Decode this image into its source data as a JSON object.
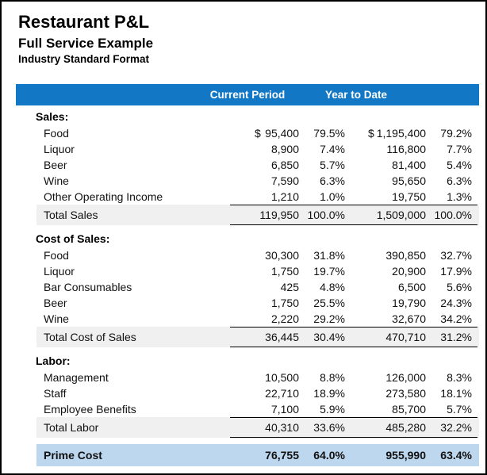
{
  "header": {
    "title": "Restaurant P&L",
    "subtitle": "Full Service Example",
    "format_label": "Industry Standard Format"
  },
  "table": {
    "column_headers": {
      "current_period": "Current Period",
      "year_to_date": "Year to Date"
    },
    "sections": [
      {
        "name": "Sales:",
        "rows": [
          {
            "label": "Food",
            "cp_cur": "$",
            "cp_amount": "95,400",
            "cp_pct": "79.5%",
            "ytd_cur": "$",
            "ytd_amount": "1,195,400",
            "ytd_pct": "79.2%"
          },
          {
            "label": "Liquor",
            "cp_amount": "8,900",
            "cp_pct": "7.4%",
            "ytd_amount": "116,800",
            "ytd_pct": "7.7%"
          },
          {
            "label": "Beer",
            "cp_amount": "6,850",
            "cp_pct": "5.7%",
            "ytd_amount": "81,400",
            "ytd_pct": "5.4%"
          },
          {
            "label": "Wine",
            "cp_amount": "7,590",
            "cp_pct": "6.3%",
            "ytd_amount": "95,650",
            "ytd_pct": "6.3%"
          },
          {
            "label": "Other Operating Income",
            "cp_amount": "1,210",
            "cp_pct": "1.0%",
            "ytd_amount": "19,750",
            "ytd_pct": "1.3%"
          }
        ],
        "total": {
          "label": "Total Sales",
          "cp_amount": "119,950",
          "cp_pct": "100.0%",
          "ytd_amount": "1,509,000",
          "ytd_pct": "100.0%"
        }
      },
      {
        "name": "Cost of Sales:",
        "rows": [
          {
            "label": "Food",
            "cp_amount": "30,300",
            "cp_pct": "31.8%",
            "ytd_amount": "390,850",
            "ytd_pct": "32.7%"
          },
          {
            "label": "Liquor",
            "cp_amount": "1,750",
            "cp_pct": "19.7%",
            "ytd_amount": "20,900",
            "ytd_pct": "17.9%"
          },
          {
            "label": "Bar Consumables",
            "cp_amount": "425",
            "cp_pct": "4.8%",
            "ytd_amount": "6,500",
            "ytd_pct": "5.6%"
          },
          {
            "label": "Beer",
            "cp_amount": "1,750",
            "cp_pct": "25.5%",
            "ytd_amount": "19,790",
            "ytd_pct": "24.3%"
          },
          {
            "label": "Wine",
            "cp_amount": "2,220",
            "cp_pct": "29.2%",
            "ytd_amount": "32,670",
            "ytd_pct": "34.2%"
          }
        ],
        "total": {
          "label": "Total Cost of Sales",
          "cp_amount": "36,445",
          "cp_pct": "30.4%",
          "ytd_amount": "470,710",
          "ytd_pct": "31.2%"
        }
      },
      {
        "name": "Labor:",
        "rows": [
          {
            "label": "Management",
            "cp_amount": "10,500",
            "cp_pct": "8.8%",
            "ytd_amount": "126,000",
            "ytd_pct": "8.3%"
          },
          {
            "label": "Staff",
            "cp_amount": "22,710",
            "cp_pct": "18.9%",
            "ytd_amount": "273,580",
            "ytd_pct": "18.1%"
          },
          {
            "label": "Employee Benefits",
            "cp_amount": "7,100",
            "cp_pct": "5.9%",
            "ytd_amount": "85,700",
            "ytd_pct": "5.7%"
          }
        ],
        "total": {
          "label": "Total Labor",
          "cp_amount": "40,310",
          "cp_pct": "33.6%",
          "ytd_amount": "485,280",
          "ytd_pct": "32.2%"
        }
      }
    ],
    "prime_cost": {
      "label": "Prime Cost",
      "cp_amount": "76,755",
      "cp_pct": "64.0%",
      "ytd_amount": "955,990",
      "ytd_pct": "63.4%"
    }
  },
  "colors": {
    "header_bar": "#1277C5",
    "total_row_bg": "#F0F0F0",
    "prime_row_bg": "#BDD7EE",
    "rule": "#000000"
  }
}
